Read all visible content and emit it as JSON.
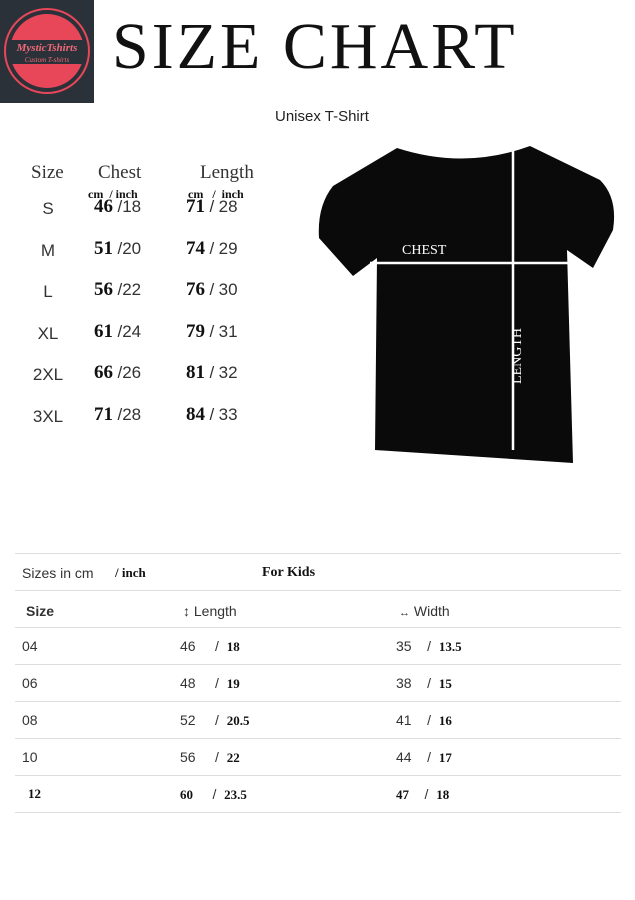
{
  "logo": {
    "brand": "MysticTshirts",
    "tagline": "Custom T-shirts",
    "colors": {
      "background": "#2b3138",
      "accent": "#e8475a"
    }
  },
  "title": "SIZE CHART",
  "subtitle": "Unisex T-Shirt",
  "adult": {
    "headers": {
      "size": "Size",
      "chest": "Chest",
      "length": "Length"
    },
    "units": {
      "chest": "cm  / inch",
      "length": "cm   /  inch"
    },
    "rows": [
      {
        "size": "S",
        "chest_cm": "46",
        "chest_in": "18",
        "length_cm": "71",
        "length_in": "28"
      },
      {
        "size": "M",
        "chest_cm": "51",
        "chest_in": "20",
        "length_cm": "74",
        "length_in": "29"
      },
      {
        "size": "L",
        "chest_cm": "56",
        "chest_in": "22",
        "length_cm": "76",
        "length_in": "30"
      },
      {
        "size": "XL",
        "chest_cm": "61",
        "chest_in": "24",
        "length_cm": "79",
        "length_in": "31"
      },
      {
        "size": "2XL",
        "chest_cm": "66",
        "chest_in": "26",
        "length_cm": "81",
        "length_in": "32"
      },
      {
        "size": "3XL",
        "chest_cm": "71",
        "chest_in": "28",
        "length_cm": "84",
        "length_in": "33"
      }
    ]
  },
  "shirt": {
    "chest_label": "CHEST",
    "length_label": "LENGTH"
  },
  "kids": {
    "caption_cm": "Sizes in cm",
    "caption_inch": "/ inch",
    "title": "For Kids",
    "headers": {
      "size": "Size",
      "length": "Length",
      "width": "Width"
    },
    "rows": [
      {
        "size": "04",
        "length_cm": "46",
        "length_in": "18",
        "width_cm": "35",
        "width_in": "13.5"
      },
      {
        "size": "06",
        "length_cm": "48",
        "length_in": "19",
        "width_cm": "38",
        "width_in": "15"
      },
      {
        "size": "08",
        "length_cm": "52",
        "length_in": "20.5",
        "width_cm": "41",
        "width_in": "16"
      },
      {
        "size": "10",
        "length_cm": "56",
        "length_in": "22",
        "width_cm": "44",
        "width_in": "17"
      },
      {
        "size": "12",
        "length_cm": "60",
        "length_in": "23.5",
        "width_cm": "47",
        "width_in": "18"
      }
    ]
  }
}
